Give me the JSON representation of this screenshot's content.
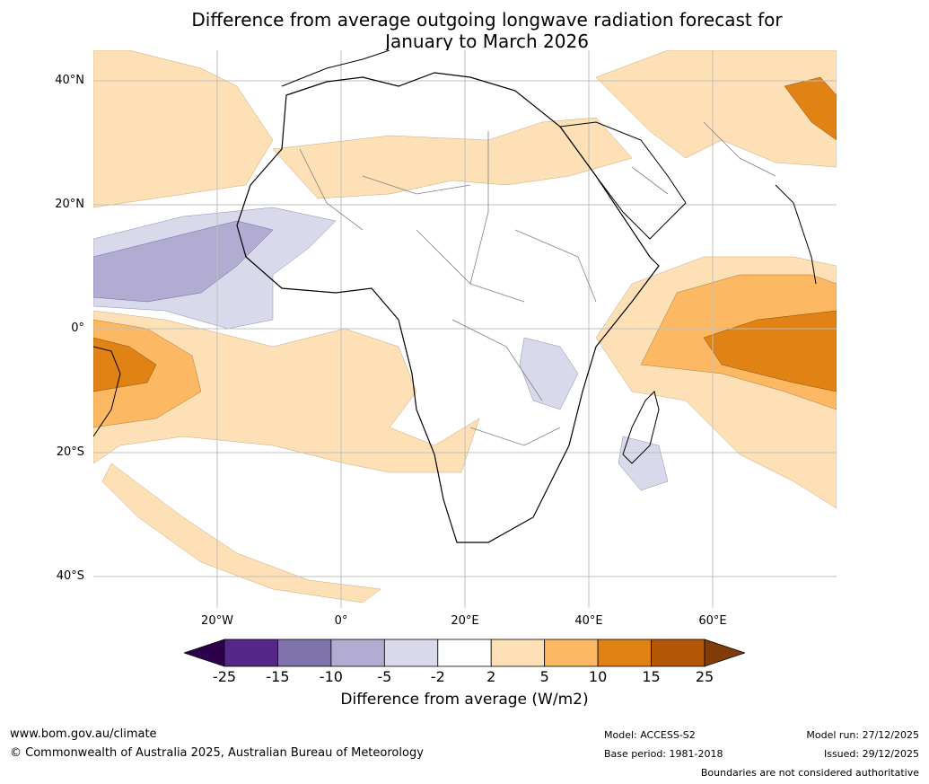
{
  "title": {
    "line1": "Difference from average outgoing longwave radiation forecast for",
    "line2": "January to March 2026"
  },
  "map": {
    "region": "Africa, Middle East and surrounding oceans",
    "lat_labels": [
      "40°N",
      "20°N",
      "0°",
      "20°S",
      "40°S"
    ],
    "lon_labels": [
      "20°W",
      "0°",
      "20°E",
      "40°E",
      "60°E"
    ]
  },
  "colorbar": {
    "ticks": [
      "-25",
      "-15",
      "-10",
      "-5",
      "-2",
      "2",
      "5",
      "10",
      "15",
      "25"
    ],
    "label": "Difference from average (W/m2)",
    "colors": [
      "#2d004b",
      "#542788",
      "#8073ac",
      "#b2abd2",
      "#d8daeb",
      "#ffffff",
      "#fee0b6",
      "#fdb863",
      "#e08214",
      "#b35806",
      "#7f3b08"
    ]
  },
  "footer": {
    "website": "www.bom.gov.au/climate",
    "copyright": "© Commonwealth of Australia 2025, Australian Bureau of Meteorology",
    "model": "Model: ACCESS-S2",
    "base_period": "Base period: 1981-2018",
    "model_run": "Model run: 27/12/2025",
    "issued": "Issued: 29/12/2025",
    "disclaimer": "Boundaries are not considered authoritative"
  }
}
